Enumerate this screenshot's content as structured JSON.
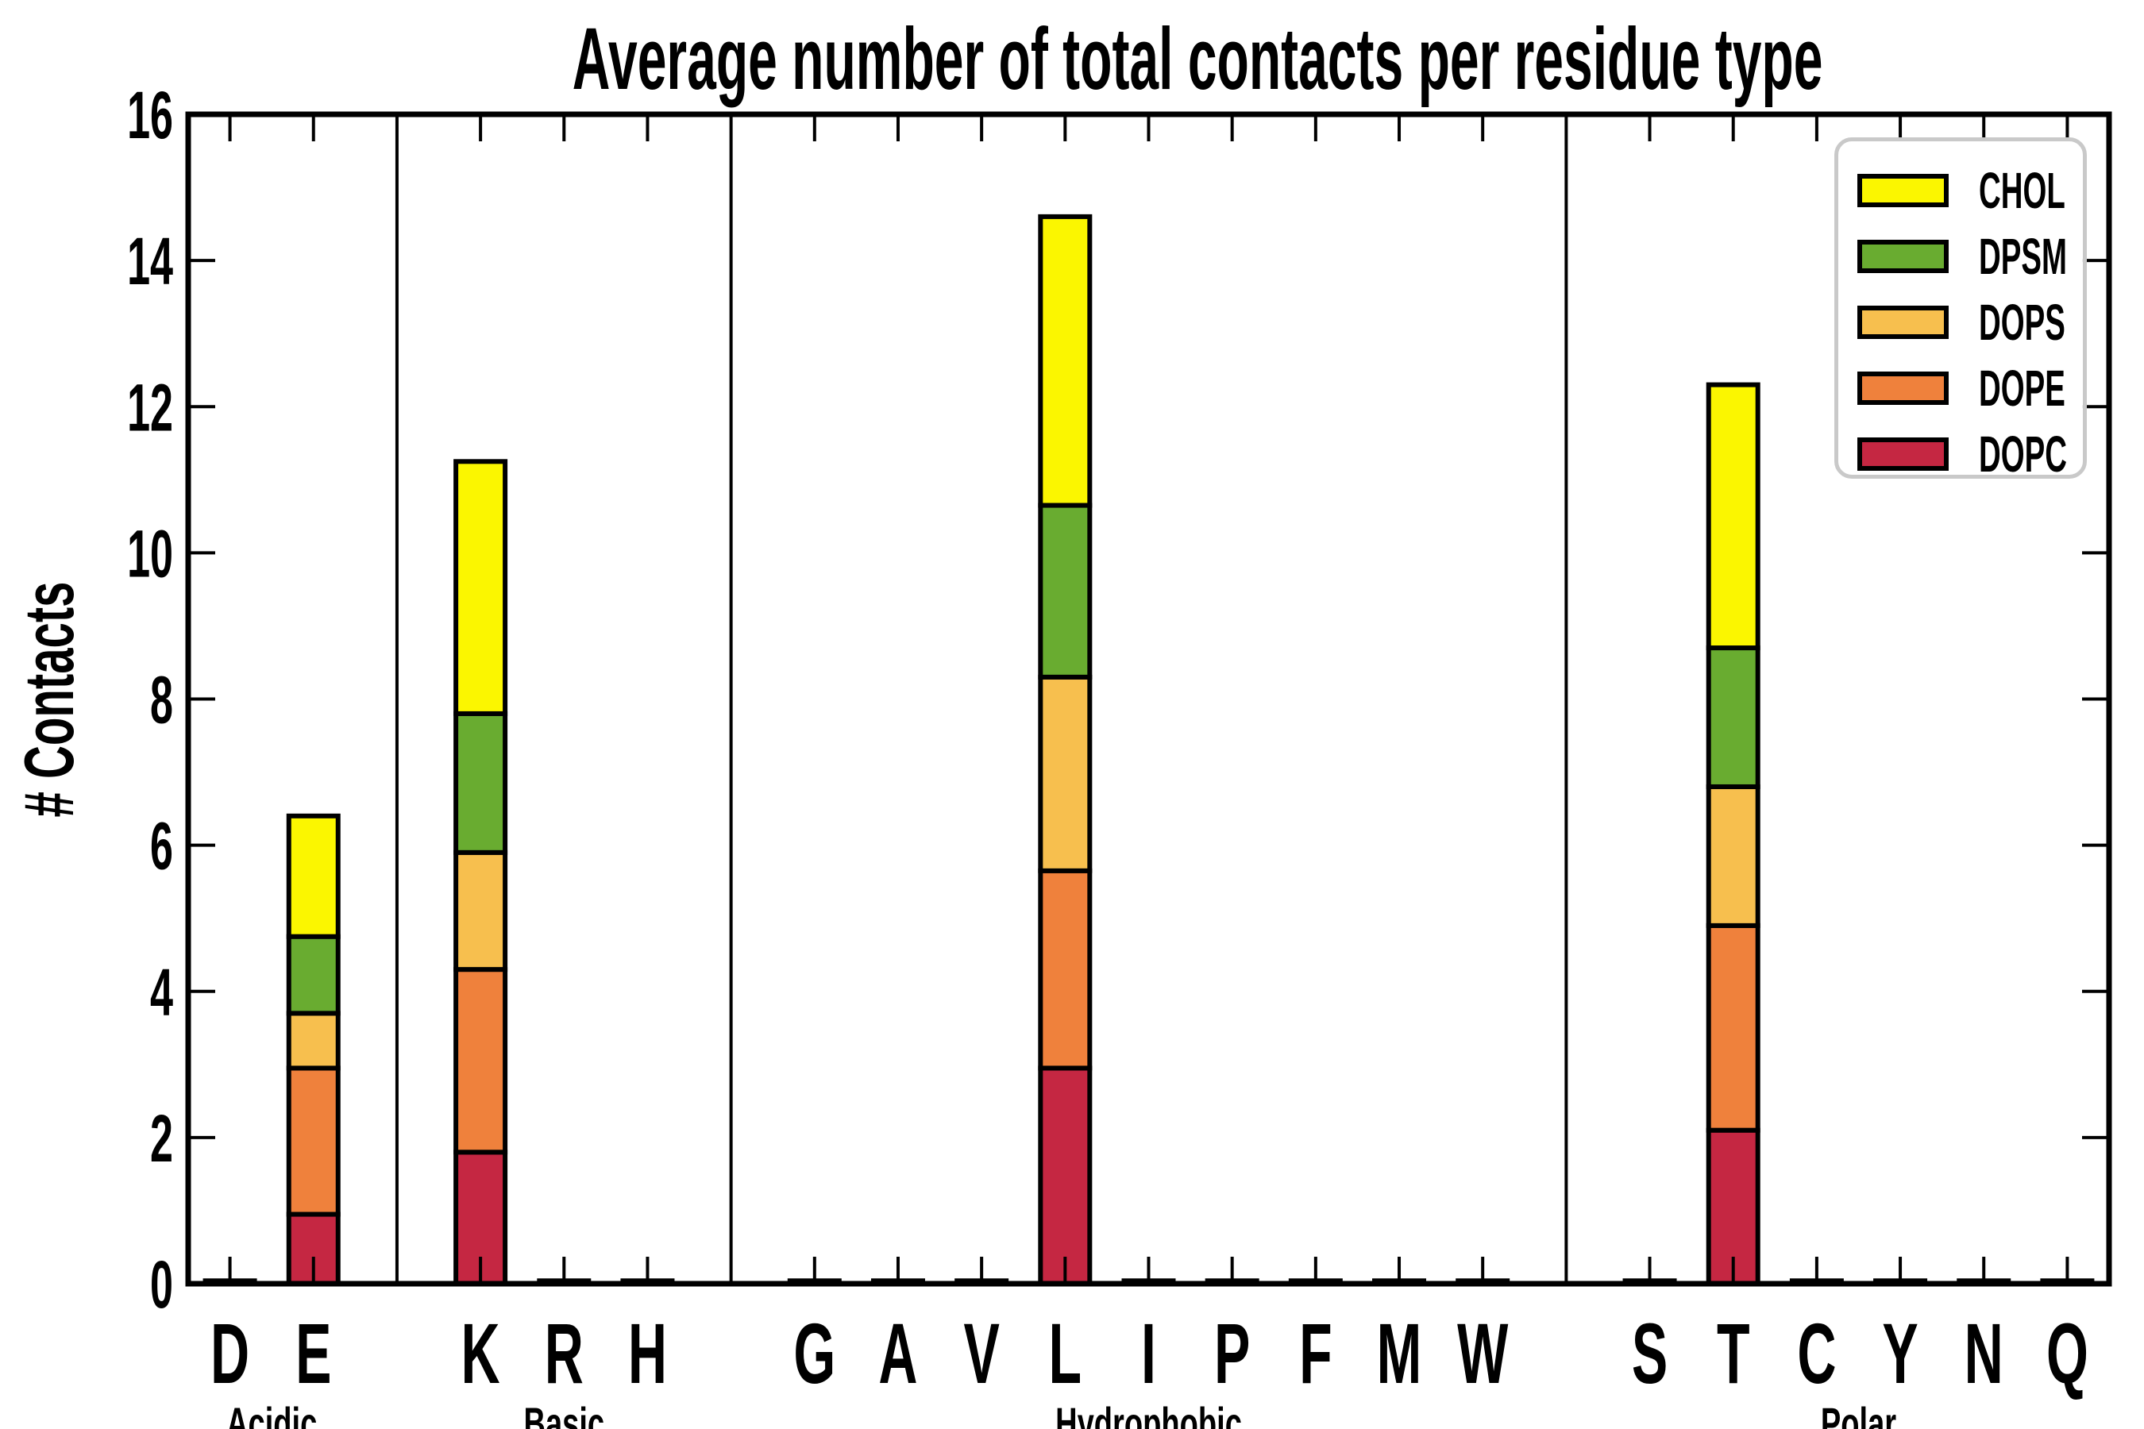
{
  "chart_data": {
    "type": "bar",
    "stacked": true,
    "title": "Average number of total contacts per residue type",
    "ylabel": "# Contacts",
    "ylim": [
      0,
      16
    ],
    "yticks": [
      0,
      2,
      4,
      6,
      8,
      10,
      12,
      14,
      16
    ],
    "grid": false,
    "legend_position": "upper right",
    "legend_order_top_to_bottom": [
      "CHOL",
      "DPSM",
      "DOPS",
      "DOPE",
      "DOPC"
    ],
    "categories": [
      "D",
      "E",
      "K",
      "R",
      "H",
      "G",
      "A",
      "V",
      "L",
      "I",
      "P",
      "F",
      "M",
      "W",
      "S",
      "T",
      "C",
      "Y",
      "N",
      "Q"
    ],
    "groups": [
      {
        "label": "Acidic",
        "residues": [
          "D",
          "E"
        ]
      },
      {
        "label": "Basic",
        "residues": [
          "K",
          "R",
          "H"
        ]
      },
      {
        "label": "Hydrophobic",
        "residues": [
          "G",
          "A",
          "V",
          "L",
          "I",
          "P",
          "F",
          "M",
          "W"
        ]
      },
      {
        "label": "Polar",
        "residues": [
          "S",
          "T",
          "C",
          "Y",
          "N",
          "Q"
        ]
      }
    ],
    "series": [
      {
        "name": "DOPC",
        "color": "#C52742",
        "values": [
          0.04,
          0.95,
          1.8,
          0.04,
          0.04,
          0.04,
          0.04,
          0.04,
          2.95,
          0.04,
          0.04,
          0.04,
          0.04,
          0.04,
          0.04,
          2.1,
          0.04,
          0.04,
          0.04,
          0.04
        ]
      },
      {
        "name": "DOPE",
        "color": "#EF813C",
        "values": [
          0,
          2.0,
          2.5,
          0,
          0,
          0,
          0,
          0,
          2.7,
          0,
          0,
          0,
          0,
          0,
          0,
          2.8,
          0,
          0,
          0,
          0
        ]
      },
      {
        "name": "DOPS",
        "color": "#F7BF4E",
        "values": [
          0,
          0.75,
          1.6,
          0,
          0,
          0,
          0,
          0,
          2.65,
          0,
          0,
          0,
          0,
          0,
          0,
          1.9,
          0,
          0,
          0,
          0
        ]
      },
      {
        "name": "DPSM",
        "color": "#69AC30",
        "values": [
          0,
          1.05,
          1.9,
          0,
          0,
          0,
          0,
          0,
          2.35,
          0,
          0,
          0,
          0,
          0,
          0,
          1.9,
          0,
          0,
          0,
          0
        ]
      },
      {
        "name": "CHOL",
        "color": "#FBF600",
        "values": [
          0,
          1.65,
          3.45,
          0,
          0,
          0,
          0,
          0,
          3.95,
          0,
          0,
          0,
          0,
          0,
          0,
          3.6,
          0,
          0,
          0,
          0
        ]
      }
    ],
    "bar_totals": {
      "E": 6.4,
      "K": 11.25,
      "L": 14.6,
      "T": 12.3
    },
    "outline_color": "#000000",
    "frame_color": "#000000",
    "legend_border_color": "#c9c9c9"
  }
}
